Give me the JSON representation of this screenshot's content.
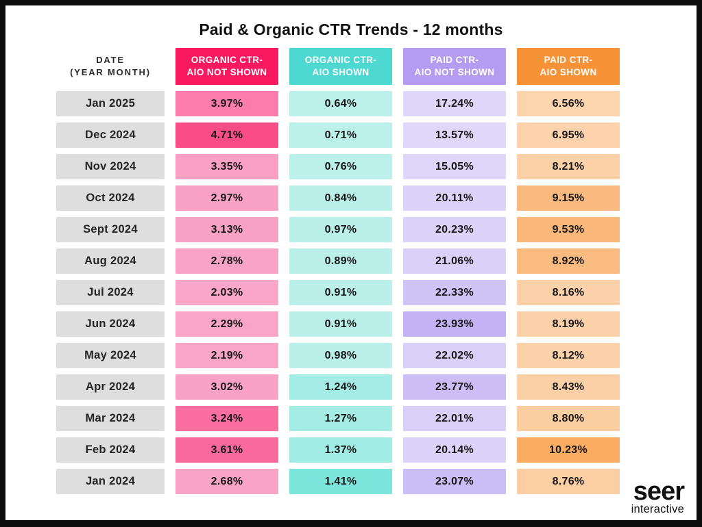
{
  "page": {
    "title": "Paid & Organic CTR Trends - 12 months"
  },
  "table": {
    "date_header": {
      "line1": "DATE",
      "line2": "(YEAR MONTH)"
    },
    "date_cell_bg": "#dedede",
    "columns": [
      {
        "id": "organic-ctr-aio-not-shown",
        "label_line1": "ORGANIC CTR-",
        "label_line2": "AIO NOT SHOWN",
        "header_color": "#F8195F"
      },
      {
        "id": "organic-ctr-aio-shown",
        "label_line1": "ORGANIC CTR-",
        "label_line2": "AIO SHOWN",
        "header_color": "#4DD9D2"
      },
      {
        "id": "paid-ctr-aio-not-shown",
        "label_line1": "PAID CTR-",
        "label_line2": "AIO NOT SHOWN",
        "header_color": "#B59CF1"
      },
      {
        "id": "paid-ctr-aio-shown",
        "label_line1": "PAID CTR-",
        "label_line2": "AIO SHOWN",
        "header_color": "#F79336"
      }
    ],
    "rows": [
      {
        "date": "Jan 2025",
        "cells": [
          {
            "value": "3.97%",
            "bg": "#FC7CAC"
          },
          {
            "value": "0.64%",
            "bg": "#BCF0EB"
          },
          {
            "value": "17.24%",
            "bg": "#DED7F9"
          },
          {
            "value": "6.56%",
            "bg": "#FCD4AE"
          }
        ]
      },
      {
        "date": "Dec 2024",
        "cells": [
          {
            "value": "4.71%",
            "bg": "#FA4C86"
          },
          {
            "value": "0.71%",
            "bg": "#BCF0EB"
          },
          {
            "value": "13.57%",
            "bg": "#DFD8F9"
          },
          {
            "value": "6.95%",
            "bg": "#FCD3AC"
          }
        ]
      },
      {
        "date": "Nov 2024",
        "cells": [
          {
            "value": "3.35%",
            "bg": "#F9A0C4"
          },
          {
            "value": "0.76%",
            "bg": "#BCF0EB"
          },
          {
            "value": "15.05%",
            "bg": "#DED7F9"
          },
          {
            "value": "8.21%",
            "bg": "#FBD1A8"
          }
        ]
      },
      {
        "date": "Oct 2024",
        "cells": [
          {
            "value": "2.97%",
            "bg": "#F9A2C5"
          },
          {
            "value": "0.84%",
            "bg": "#BBF0EA"
          },
          {
            "value": "20.11%",
            "bg": "#DCD4F8"
          },
          {
            "value": "9.15%",
            "bg": "#FAB97E"
          }
        ]
      },
      {
        "date": "Sept 2024",
        "cells": [
          {
            "value": "3.13%",
            "bg": "#F9A1C4"
          },
          {
            "value": "0.97%",
            "bg": "#BBF0EA"
          },
          {
            "value": "20.23%",
            "bg": "#DCD4F8"
          },
          {
            "value": "9.53%",
            "bg": "#FAB77A"
          }
        ]
      },
      {
        "date": "Aug 2024",
        "cells": [
          {
            "value": "2.78%",
            "bg": "#F9A3C6"
          },
          {
            "value": "0.89%",
            "bg": "#BBF0EA"
          },
          {
            "value": "21.06%",
            "bg": "#DAD1F8"
          },
          {
            "value": "8.92%",
            "bg": "#FABB80"
          }
        ]
      },
      {
        "date": "Jul 2024",
        "cells": [
          {
            "value": "2.03%",
            "bg": "#F9A6C8"
          },
          {
            "value": "0.91%",
            "bg": "#BBF0EA"
          },
          {
            "value": "22.33%",
            "bg": "#D0C3F6"
          },
          {
            "value": "8.16%",
            "bg": "#FBD1A9"
          }
        ]
      },
      {
        "date": "Jun 2024",
        "cells": [
          {
            "value": "2.29%",
            "bg": "#F9A5C7"
          },
          {
            "value": "0.91%",
            "bg": "#BBF0EA"
          },
          {
            "value": "23.93%",
            "bg": "#C3B2F4"
          },
          {
            "value": "8.19%",
            "bg": "#FBD1A9"
          }
        ]
      },
      {
        "date": "May 2024",
        "cells": [
          {
            "value": "2.19%",
            "bg": "#F9A5C7"
          },
          {
            "value": "0.98%",
            "bg": "#BBF0EA"
          },
          {
            "value": "22.02%",
            "bg": "#D9D0F8"
          },
          {
            "value": "8.12%",
            "bg": "#FBD2A9"
          }
        ]
      },
      {
        "date": "Apr 2024",
        "cells": [
          {
            "value": "3.02%",
            "bg": "#F9A2C5"
          },
          {
            "value": "1.24%",
            "bg": "#A6ECE6"
          },
          {
            "value": "23.77%",
            "bg": "#CCBEF5"
          },
          {
            "value": "8.43%",
            "bg": "#FBD0A6"
          }
        ]
      },
      {
        "date": "Mar 2024",
        "cells": [
          {
            "value": "3.24%",
            "bg": "#FA6FA0"
          },
          {
            "value": "1.27%",
            "bg": "#A5ECE5"
          },
          {
            "value": "22.01%",
            "bg": "#D9D0F8"
          },
          {
            "value": "8.80%",
            "bg": "#FBCEA2"
          }
        ]
      },
      {
        "date": "Feb 2024",
        "cells": [
          {
            "value": "3.61%",
            "bg": "#FA699C"
          },
          {
            "value": "1.37%",
            "bg": "#A0EBE4"
          },
          {
            "value": "20.14%",
            "bg": "#DCD4F8"
          },
          {
            "value": "10.23%",
            "bg": "#F9AC62"
          }
        ]
      },
      {
        "date": "Jan 2024",
        "cells": [
          {
            "value": "2.68%",
            "bg": "#F9A4C6"
          },
          {
            "value": "1.41%",
            "bg": "#7CE5DC"
          },
          {
            "value": "23.07%",
            "bg": "#CBBDF5"
          },
          {
            "value": "8.76%",
            "bg": "#FBCEA3"
          }
        ]
      }
    ]
  },
  "logo": {
    "name": "seer",
    "sub": "interactive"
  },
  "chart_data": {
    "type": "heatmap",
    "title": "Paid & Organic CTR Trends - 12 months",
    "categories": [
      "Jan 2025",
      "Dec 2024",
      "Nov 2024",
      "Oct 2024",
      "Sept 2024",
      "Aug 2024",
      "Jul 2024",
      "Jun 2024",
      "May 2024",
      "Apr 2024",
      "Mar 2024",
      "Feb 2024",
      "Jan 2024"
    ],
    "unit": "%",
    "series": [
      {
        "name": "Organic CTR - AIO Not Shown",
        "color": "#F8195F",
        "values": [
          3.97,
          4.71,
          3.35,
          2.97,
          3.13,
          2.78,
          2.03,
          2.29,
          2.19,
          3.02,
          3.24,
          3.61,
          2.68
        ]
      },
      {
        "name": "Organic CTR - AIO Shown",
        "color": "#4DD9D2",
        "values": [
          0.64,
          0.71,
          0.76,
          0.84,
          0.97,
          0.89,
          0.91,
          0.91,
          0.98,
          1.24,
          1.27,
          1.37,
          1.41
        ]
      },
      {
        "name": "Paid CTR - AIO Not Shown",
        "color": "#B59CF1",
        "values": [
          17.24,
          13.57,
          15.05,
          20.11,
          20.23,
          21.06,
          22.33,
          23.93,
          22.02,
          23.77,
          22.01,
          20.14,
          23.07
        ]
      },
      {
        "name": "Paid CTR - AIO Shown",
        "color": "#F79336",
        "values": [
          6.56,
          6.95,
          8.21,
          9.15,
          9.53,
          8.92,
          8.16,
          8.19,
          8.12,
          8.43,
          8.8,
          10.23,
          8.76
        ]
      }
    ],
    "layout": {
      "orientation": "rows = months (newest first)",
      "legend_position": "column headers",
      "grid": false
    }
  }
}
